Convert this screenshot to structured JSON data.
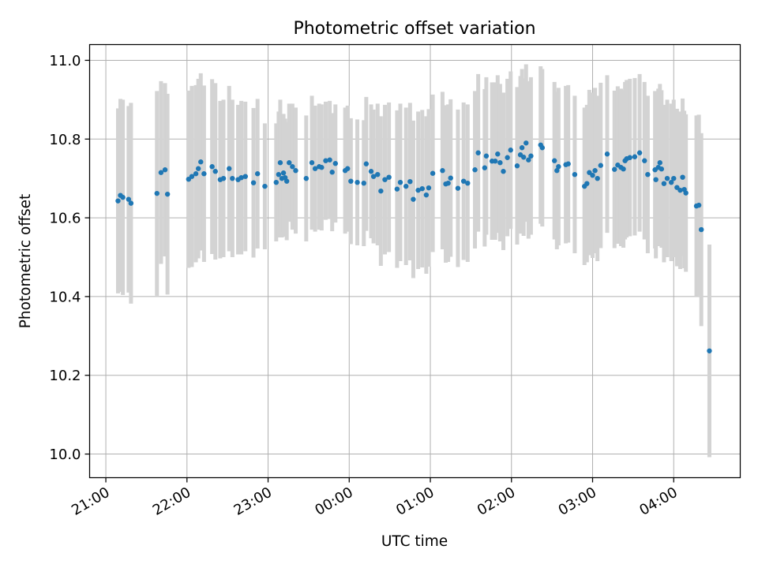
{
  "chart_data": {
    "type": "scatter",
    "title": "Photometric offset variation",
    "xlabel": "UTC time",
    "ylabel": "Photometric offset",
    "x_unit": "hours since 21:00 UTC",
    "xlim": [
      -0.2,
      7.82
    ],
    "ylim": [
      9.94,
      11.04
    ],
    "x_ticks": [
      {
        "v": 0,
        "label": "21:00"
      },
      {
        "v": 1,
        "label": "22:00"
      },
      {
        "v": 2,
        "label": "23:00"
      },
      {
        "v": 3,
        "label": "00:00"
      },
      {
        "v": 4,
        "label": "01:00"
      },
      {
        "v": 5,
        "label": "02:00"
      },
      {
        "v": 6,
        "label": "03:00"
      },
      {
        "v": 7,
        "label": "04:00"
      }
    ],
    "y_ticks": [
      {
        "v": 10.0,
        "label": "10.0"
      },
      {
        "v": 10.2,
        "label": "10.2"
      },
      {
        "v": 10.4,
        "label": "10.4"
      },
      {
        "v": 10.6,
        "label": "10.6"
      },
      {
        "v": 10.8,
        "label": "10.8"
      },
      {
        "v": 11.0,
        "label": "11.0"
      }
    ],
    "grid": true,
    "error_color": "#d3d3d3",
    "marker_color": "#1f77b4",
    "series": [
      {
        "name": "offset",
        "points": [
          [
            0.15,
            10.643,
            0.235
          ],
          [
            0.18,
            10.657,
            0.245
          ],
          [
            0.21,
            10.652,
            0.248
          ],
          [
            0.28,
            10.647,
            0.237
          ],
          [
            0.31,
            10.637,
            0.255
          ],
          [
            0.63,
            10.662,
            0.26
          ],
          [
            0.68,
            10.715,
            0.232
          ],
          [
            0.73,
            10.722,
            0.22
          ],
          [
            0.76,
            10.66,
            0.255
          ],
          [
            1.02,
            10.698,
            0.225
          ],
          [
            1.06,
            10.705,
            0.23
          ],
          [
            1.11,
            10.712,
            0.225
          ],
          [
            1.14,
            10.725,
            0.228
          ],
          [
            1.17,
            10.742,
            0.225
          ],
          [
            1.21,
            10.712,
            0.224
          ],
          [
            1.31,
            10.73,
            0.222
          ],
          [
            1.35,
            10.718,
            0.224
          ],
          [
            1.41,
            10.697,
            0.2
          ],
          [
            1.45,
            10.7,
            0.2
          ],
          [
            1.52,
            10.725,
            0.21
          ],
          [
            1.56,
            10.7,
            0.2
          ],
          [
            1.63,
            10.697,
            0.19
          ],
          [
            1.67,
            10.702,
            0.195
          ],
          [
            1.72,
            10.705,
            0.19
          ],
          [
            1.82,
            10.689,
            0.19
          ],
          [
            1.87,
            10.712,
            0.19
          ],
          [
            1.96,
            10.68,
            0.16
          ],
          [
            2.1,
            10.69,
            0.15
          ],
          [
            2.13,
            10.71,
            0.16
          ],
          [
            2.15,
            10.74,
            0.16
          ],
          [
            2.17,
            10.7,
            0.15
          ],
          [
            2.19,
            10.714,
            0.15
          ],
          [
            2.21,
            10.702,
            0.15
          ],
          [
            2.23,
            10.693,
            0.15
          ],
          [
            2.26,
            10.74,
            0.15
          ],
          [
            2.3,
            10.73,
            0.16
          ],
          [
            2.34,
            10.72,
            0.16
          ],
          [
            2.47,
            10.7,
            0.16
          ],
          [
            2.54,
            10.74,
            0.17
          ],
          [
            2.58,
            10.725,
            0.16
          ],
          [
            2.63,
            10.73,
            0.16
          ],
          [
            2.66,
            10.728,
            0.16
          ],
          [
            2.71,
            10.745,
            0.15
          ],
          [
            2.76,
            10.747,
            0.15
          ],
          [
            2.79,
            10.716,
            0.15
          ],
          [
            2.83,
            10.738,
            0.15
          ],
          [
            2.95,
            10.72,
            0.16
          ],
          [
            2.98,
            10.725,
            0.16
          ],
          [
            3.02,
            10.693,
            0.16
          ],
          [
            3.1,
            10.69,
            0.16
          ],
          [
            3.18,
            10.688,
            0.16
          ],
          [
            3.21,
            10.737,
            0.17
          ],
          [
            3.27,
            10.718,
            0.17
          ],
          [
            3.3,
            10.705,
            0.17
          ],
          [
            3.35,
            10.71,
            0.18
          ],
          [
            3.39,
            10.668,
            0.19
          ],
          [
            3.44,
            10.697,
            0.19
          ],
          [
            3.49,
            10.703,
            0.19
          ],
          [
            3.59,
            10.673,
            0.2
          ],
          [
            3.63,
            10.69,
            0.2
          ],
          [
            3.7,
            10.68,
            0.2
          ],
          [
            3.75,
            10.692,
            0.2
          ],
          [
            3.79,
            10.647,
            0.2
          ],
          [
            3.85,
            10.67,
            0.2
          ],
          [
            3.9,
            10.674,
            0.2
          ],
          [
            3.95,
            10.658,
            0.2
          ],
          [
            3.98,
            10.676,
            0.2
          ],
          [
            4.03,
            10.713,
            0.2
          ],
          [
            4.15,
            10.72,
            0.2
          ],
          [
            4.19,
            10.686,
            0.2
          ],
          [
            4.22,
            10.688,
            0.2
          ],
          [
            4.25,
            10.701,
            0.2
          ],
          [
            4.34,
            10.675,
            0.2
          ],
          [
            4.41,
            10.693,
            0.2
          ],
          [
            4.46,
            10.688,
            0.2
          ],
          [
            4.55,
            10.722,
            0.2
          ],
          [
            4.59,
            10.765,
            0.2
          ],
          [
            4.67,
            10.727,
            0.2
          ],
          [
            4.69,
            10.757,
            0.2
          ],
          [
            4.76,
            10.744,
            0.2
          ],
          [
            4.8,
            10.744,
            0.2
          ],
          [
            4.83,
            10.762,
            0.2
          ],
          [
            4.86,
            10.74,
            0.2
          ],
          [
            4.9,
            10.718,
            0.2
          ],
          [
            4.95,
            10.753,
            0.2
          ],
          [
            4.99,
            10.772,
            0.2
          ],
          [
            5.07,
            10.732,
            0.2
          ],
          [
            5.11,
            10.76,
            0.2
          ],
          [
            5.13,
            10.778,
            0.2
          ],
          [
            5.15,
            10.754,
            0.2
          ],
          [
            5.18,
            10.79,
            0.2
          ],
          [
            5.21,
            10.747,
            0.2
          ],
          [
            5.24,
            10.757,
            0.2
          ],
          [
            5.36,
            10.785,
            0.2
          ],
          [
            5.38,
            10.778,
            0.2
          ],
          [
            5.53,
            10.745,
            0.2
          ],
          [
            5.56,
            10.72,
            0.2
          ],
          [
            5.58,
            10.73,
            0.2
          ],
          [
            5.67,
            10.735,
            0.2
          ],
          [
            5.7,
            10.737,
            0.2
          ],
          [
            5.78,
            10.71,
            0.2
          ],
          [
            5.9,
            10.68,
            0.2
          ],
          [
            5.93,
            10.687,
            0.2
          ],
          [
            5.96,
            10.715,
            0.21
          ],
          [
            6.0,
            10.708,
            0.21
          ],
          [
            6.03,
            10.72,
            0.21
          ],
          [
            6.06,
            10.7,
            0.21
          ],
          [
            6.1,
            10.733,
            0.21
          ],
          [
            6.18,
            10.762,
            0.2
          ],
          [
            6.27,
            10.723,
            0.2
          ],
          [
            6.31,
            10.734,
            0.2
          ],
          [
            6.35,
            10.728,
            0.2
          ],
          [
            6.38,
            10.724,
            0.2
          ],
          [
            6.4,
            10.745,
            0.2
          ],
          [
            6.42,
            10.75,
            0.2
          ],
          [
            6.46,
            10.753,
            0.2
          ],
          [
            6.52,
            10.755,
            0.2
          ],
          [
            6.58,
            10.765,
            0.2
          ],
          [
            6.64,
            10.745,
            0.2
          ],
          [
            6.68,
            10.71,
            0.2
          ],
          [
            6.77,
            10.722,
            0.2
          ],
          [
            6.78,
            10.697,
            0.2
          ],
          [
            6.81,
            10.728,
            0.2
          ],
          [
            6.83,
            10.74,
            0.2
          ],
          [
            6.85,
            10.724,
            0.2
          ],
          [
            6.88,
            10.687,
            0.2
          ],
          [
            6.92,
            10.7,
            0.2
          ],
          [
            6.97,
            10.69,
            0.2
          ],
          [
            7.0,
            10.7,
            0.2
          ],
          [
            7.04,
            10.677,
            0.2
          ],
          [
            7.08,
            10.67,
            0.2
          ],
          [
            7.11,
            10.703,
            0.2
          ],
          [
            7.13,
            10.672,
            0.2
          ],
          [
            7.15,
            10.663,
            0.2
          ],
          [
            7.28,
            10.63,
            0.23
          ],
          [
            7.31,
            10.632,
            0.23
          ],
          [
            7.34,
            10.57,
            0.245
          ],
          [
            7.44,
            10.262,
            0.27
          ]
        ]
      }
    ]
  }
}
